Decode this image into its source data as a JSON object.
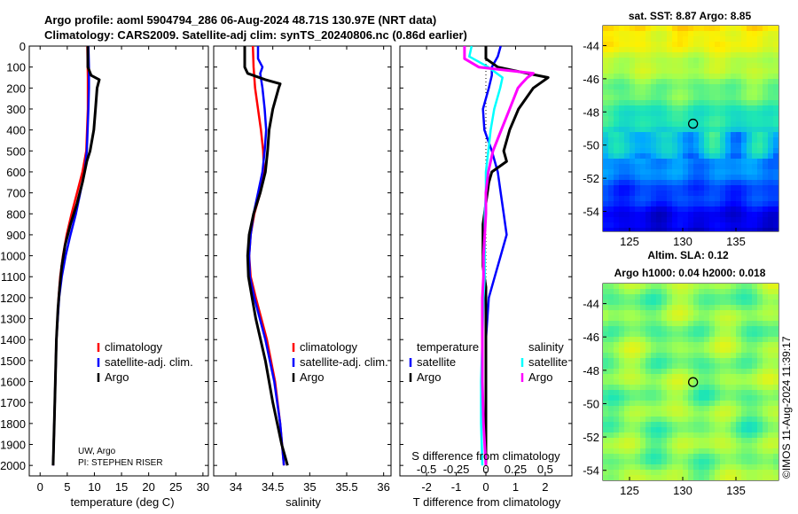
{
  "header": {
    "line1": "Argo profile: aoml 5904794_286 06-Aug-2024 48.71S 130.97E (NRT data)",
    "line2": "Climatology: CARS2009. Satellite-adj clim: synTS_20240806.nc (0.86d earlier)"
  },
  "credit": {
    "inst": "UW, Argo",
    "pi": "PI: STEPHEN RISER"
  },
  "legend": {
    "climatology": "climatology",
    "satellite": "satellite-adj. clim.",
    "argo": "Argo",
    "temperature": "temperature",
    "salinity": "salinity",
    "satellite_short": "satellite"
  },
  "colors": {
    "climatology": "#ff0000",
    "satellite": "#0000ff",
    "argo": "#000000",
    "sat_salinity": "#00ffff",
    "argo_salinity": "#ff00ff"
  },
  "maps": {
    "sst_title": "sat. SST: 8.87 Argo: 8.85",
    "sla_title1": "Altim. SLA: 0.12",
    "sla_title2": "Argo h1000: 0.04 h2000: 0.018",
    "lat_ticks": [
      "-44",
      "-46",
      "-48",
      "-50",
      "-52",
      "-54"
    ],
    "lon_ticks": [
      "125",
      "130",
      "135"
    ],
    "float_lon": 130.97,
    "float_lat": -48.71
  },
  "watermark": "©IMOS 11-Aug-2024 11:39:17",
  "chart_data": [
    {
      "type": "line",
      "id": "temperature",
      "xlabel": "temperature (deg C)",
      "ylabel": "",
      "xlim": [
        -2,
        31
      ],
      "ylim": [
        2050,
        0
      ],
      "xticks": [
        0,
        5,
        10,
        15,
        20,
        25,
        30
      ],
      "yticks": [
        0,
        100,
        200,
        300,
        400,
        500,
        600,
        700,
        800,
        900,
        1000,
        1100,
        1200,
        1300,
        1400,
        1500,
        1600,
        1700,
        1800,
        1900,
        2000
      ],
      "series": [
        {
          "name": "climatology",
          "y": [
            0,
            150,
            300,
            500,
            600,
            700,
            800,
            900,
            1000,
            1100,
            1200,
            1400,
            1600,
            1800,
            2000
          ],
          "x": [
            8.7,
            8.8,
            8.8,
            8.5,
            7.8,
            6.8,
            5.8,
            4.9,
            4.2,
            3.7,
            3.4,
            3.0,
            2.8,
            2.6,
            2.4
          ]
        },
        {
          "name": "satellite-adj. clim.",
          "y": [
            0,
            100,
            200,
            300,
            500,
            600,
            700,
            800,
            900,
            1000,
            1100,
            1200,
            1400,
            1600,
            1800,
            2000
          ],
          "x": [
            8.9,
            9.0,
            9.0,
            8.9,
            8.6,
            8.2,
            7.4,
            6.6,
            5.6,
            4.7,
            4.0,
            3.5,
            3.0,
            2.8,
            2.6,
            2.4
          ]
        },
        {
          "name": "Argo",
          "y": [
            0,
            100,
            140,
            160,
            200,
            300,
            400,
            500,
            550,
            650,
            750,
            850,
            950,
            1050,
            1150,
            1250,
            1400,
            1600,
            1800,
            2000
          ],
          "x": [
            8.8,
            8.8,
            9.4,
            10.9,
            10.5,
            10.2,
            9.9,
            9.2,
            8.6,
            7.8,
            6.8,
            5.6,
            4.6,
            4.0,
            3.6,
            3.3,
            3.0,
            2.8,
            2.6,
            2.4
          ]
        }
      ]
    },
    {
      "type": "line",
      "id": "salinity",
      "xlabel": "salinity",
      "xlim": [
        33.7,
        36.1
      ],
      "ylim": [
        2050,
        0
      ],
      "xticks": [
        34,
        34.5,
        35,
        35.5,
        36
      ],
      "series": [
        {
          "name": "climatology",
          "y": [
            0,
            100,
            200,
            300,
            400,
            500,
            600,
            700,
            800,
            900,
            1000,
            1100,
            1200,
            1400,
            1600,
            1800,
            2000
          ],
          "x": [
            34.23,
            34.24,
            34.26,
            34.3,
            34.34,
            34.37,
            34.38,
            34.33,
            34.25,
            34.2,
            34.18,
            34.2,
            34.27,
            34.42,
            34.53,
            34.6,
            34.65
          ]
        },
        {
          "name": "satellite-adj. clim.",
          "y": [
            0,
            60,
            100,
            130,
            200,
            300,
            400,
            500,
            600,
            700,
            800,
            900,
            1000,
            1100,
            1200,
            1400,
            1600,
            1800,
            2000
          ],
          "x": [
            34.3,
            34.3,
            34.36,
            34.33,
            34.36,
            34.39,
            34.41,
            34.39,
            34.36,
            34.3,
            34.24,
            34.2,
            34.18,
            34.19,
            34.25,
            34.4,
            34.52,
            34.6,
            34.65
          ]
        },
        {
          "name": "Argo",
          "y": [
            0,
            100,
            130,
            160,
            180,
            200,
            300,
            400,
            500,
            600,
            700,
            800,
            900,
            1000,
            1100,
            1200,
            1300,
            1500,
            1700,
            1900,
            2000
          ],
          "x": [
            34.12,
            34.12,
            34.16,
            34.4,
            34.6,
            34.58,
            34.5,
            34.45,
            34.43,
            34.4,
            34.33,
            34.24,
            34.18,
            34.16,
            34.17,
            34.22,
            34.27,
            34.4,
            34.5,
            34.62,
            34.7
          ]
        }
      ]
    },
    {
      "type": "line",
      "id": "difference",
      "xlabel": "T difference from climatology",
      "top_axis_label": "S difference from climatology",
      "xlim": [
        -2.9,
        2.9
      ],
      "ylim": [
        2050,
        0
      ],
      "xticks": [
        -2,
        -1,
        0,
        1,
        2
      ],
      "top_tick_labels": [
        "-0.5",
        "-0.25",
        "0",
        "0.25",
        "0.5"
      ],
      "series": [
        {
          "name": "temperature satellite",
          "y": [
            0,
            50,
            100,
            140,
            200,
            300,
            400,
            500,
            600,
            700,
            800,
            900,
            1000,
            1100,
            1200,
            1400,
            1600,
            1800,
            2000
          ],
          "x": [
            0.5,
            0.4,
            0.2,
            0.2,
            0.1,
            -0.1,
            -0.05,
            0.2,
            0.4,
            0.5,
            0.6,
            0.7,
            0.5,
            0.3,
            0.1,
            0.0,
            0.0,
            0.0,
            0.0
          ]
        },
        {
          "name": "temperature Argo",
          "y": [
            0,
            60,
            100,
            130,
            150,
            170,
            200,
            300,
            400,
            500,
            550,
            600,
            650,
            750,
            850,
            950,
            1050,
            1150,
            1200,
            1400,
            1600,
            1800,
            2000
          ],
          "x": [
            0.0,
            0.0,
            0.4,
            1.4,
            2.1,
            1.9,
            1.6,
            1.1,
            0.8,
            0.6,
            0.7,
            0.2,
            0.1,
            0.0,
            -0.1,
            -0.1,
            -0.1,
            0.0,
            0.0,
            0.0,
            0.0,
            0.0,
            0.0
          ]
        },
        {
          "name": "salinity satellite",
          "y": [
            0,
            50,
            100,
            150,
            200,
            300,
            400,
            500,
            600,
            700,
            800,
            900,
            1000,
            1100,
            1200,
            1400,
            1600,
            1800,
            2000
          ],
          "x": [
            -0.12,
            -0.14,
            0.02,
            0.14,
            0.12,
            0.07,
            0.04,
            0.02,
            0.0,
            0.0,
            -0.01,
            -0.01,
            -0.01,
            -0.01,
            -0.02,
            -0.03,
            -0.04,
            -0.04,
            -0.03
          ]
        },
        {
          "name": "salinity Argo",
          "y": [
            0,
            60,
            100,
            130,
            150,
            180,
            200,
            300,
            400,
            500,
            600,
            700,
            800,
            900,
            1000,
            1100,
            1200,
            1400,
            1600,
            1800,
            2000
          ],
          "x": [
            -0.18,
            -0.18,
            -0.06,
            0.4,
            0.35,
            0.3,
            0.27,
            0.2,
            0.13,
            0.06,
            0.02,
            0.0,
            0.0,
            -0.01,
            -0.02,
            -0.02,
            -0.03,
            -0.03,
            -0.03,
            -0.02,
            0.0
          ]
        }
      ]
    }
  ]
}
